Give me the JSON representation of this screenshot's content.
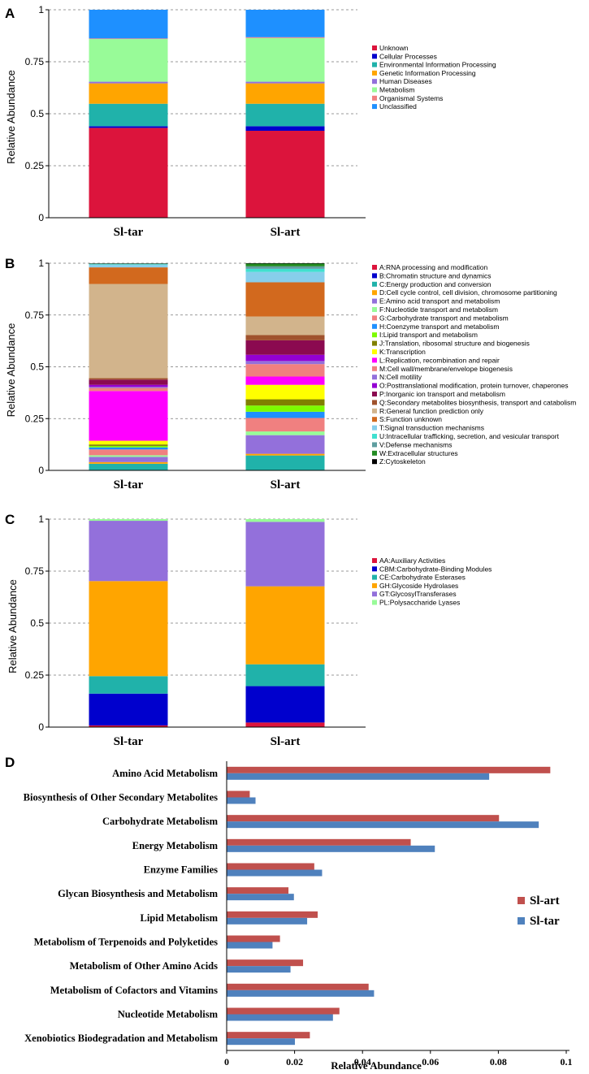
{
  "chart_data": [
    {
      "panel": "A",
      "type": "bar",
      "stacked": true,
      "ylabel": "Relative Abundance",
      "xlabel": "",
      "ylim": [
        0,
        1
      ],
      "yticks": [
        "0",
        "0.25",
        "0.5",
        "0.75",
        "1"
      ],
      "grid": true,
      "legend_position": "right",
      "categories": [
        "Sl-tar",
        "Sl-art"
      ],
      "series": [
        {
          "name": "Unknown",
          "color": "#dc143c",
          "values": [
            0.432,
            0.418
          ]
        },
        {
          "name": "Cellular Processes",
          "color": "#0000cd",
          "values": [
            0.008,
            0.022
          ]
        },
        {
          "name": "Environmental Information Processing",
          "color": "#20b2aa",
          "values": [
            0.108,
            0.108
          ]
        },
        {
          "name": "Genetic Information Processing",
          "color": "#ffa500",
          "values": [
            0.098,
            0.098
          ]
        },
        {
          "name": "Human Diseases",
          "color": "#9370db",
          "values": [
            0.008,
            0.008
          ]
        },
        {
          "name": "Metabolism",
          "color": "#98fb98",
          "values": [
            0.205,
            0.21
          ]
        },
        {
          "name": "Organismal Systems",
          "color": "#f08080",
          "values": [
            0.003,
            0.004
          ]
        },
        {
          "name": "Unclassified",
          "color": "#1e90ff",
          "values": [
            0.138,
            0.132
          ]
        }
      ]
    },
    {
      "panel": "B",
      "type": "bar",
      "stacked": true,
      "ylabel": "Relative Abundance",
      "xlabel": "",
      "ylim": [
        0,
        1
      ],
      "yticks": [
        "0",
        "0.25",
        "0.5",
        "0.75",
        "1"
      ],
      "grid": true,
      "legend_position": "right",
      "categories": [
        "Sl-tar",
        "Sl-art"
      ],
      "series": [
        {
          "name": "A:RNA processing and modification",
          "color": "#dc143c",
          "values": [
            0.001,
            0.001
          ]
        },
        {
          "name": "B:Chromatin structure and dynamics",
          "color": "#0000cd",
          "values": [
            0.001,
            0.001
          ]
        },
        {
          "name": "C:Energy production and conversion",
          "color": "#20b2aa",
          "values": [
            0.03,
            0.07
          ]
        },
        {
          "name": "D:Cell cycle control, cell division, chromosome partitioning",
          "color": "#ffa500",
          "values": [
            0.008,
            0.008
          ]
        },
        {
          "name": "E:Amino acid transport and metabolism",
          "color": "#9370db",
          "values": [
            0.025,
            0.09
          ]
        },
        {
          "name": "F:Nucleotide transport and metabolism",
          "color": "#98fb98",
          "values": [
            0.008,
            0.018
          ]
        },
        {
          "name": "G:Carbohydrate transport and metabolism",
          "color": "#f08080",
          "values": [
            0.028,
            0.065
          ]
        },
        {
          "name": "H:Coenzyme transport and metabolism",
          "color": "#1e90ff",
          "values": [
            0.01,
            0.03
          ]
        },
        {
          "name": "I:Lipid transport and metabolism",
          "color": "#7cfc00",
          "values": [
            0.007,
            0.03
          ]
        },
        {
          "name": "J:Translation, ribosomal structure and biogenesis",
          "color": "#808000",
          "values": [
            0.007,
            0.03
          ]
        },
        {
          "name": "K:Transcription",
          "color": "#ffff00",
          "values": [
            0.018,
            0.07
          ]
        },
        {
          "name": "L:Replication, recombination and repair",
          "color": "#ff00ff",
          "values": [
            0.24,
            0.04
          ]
        },
        {
          "name": "M:Cell wall/membrane/envelope biogenesis",
          "color": "#f08080",
          "values": [
            0.015,
            0.06
          ]
        },
        {
          "name": "N:Cell motility",
          "color": "#9370db",
          "values": [
            0.005,
            0.015
          ]
        },
        {
          "name": "O:Posttranslational modification, protein turnover, chaperones",
          "color": "#9400d3",
          "values": [
            0.01,
            0.03
          ]
        },
        {
          "name": "P:Inorganic ion transport and metabolism",
          "color": "#8b0a50",
          "values": [
            0.025,
            0.07
          ]
        },
        {
          "name": "Q:Secondary metabolites biosynthesis, transport and catabolism",
          "color": "#a0522d",
          "values": [
            0.007,
            0.025
          ]
        },
        {
          "name": "R:General function prediction only",
          "color": "#d2b48c",
          "values": [
            0.455,
            0.09
          ]
        },
        {
          "name": "S:Function unknown",
          "color": "#d2691e",
          "values": [
            0.08,
            0.165
          ]
        },
        {
          "name": "T:Signal transduction mechanisms",
          "color": "#87ceeb",
          "values": [
            0.012,
            0.05
          ]
        },
        {
          "name": "U:Intracellular trafficking, secretion, and vesicular transport",
          "color": "#40e0d0",
          "values": [
            0.003,
            0.015
          ]
        },
        {
          "name": "V:Defense mechanisms",
          "color": "#5f9ea0",
          "values": [
            0.003,
            0.012
          ]
        },
        {
          "name": "W:Extracellular structures",
          "color": "#228b22",
          "values": [
            0.001,
            0.013
          ]
        },
        {
          "name": "Z:Cytoskeleton",
          "color": "#000000",
          "values": [
            0.001,
            0.002
          ]
        }
      ]
    },
    {
      "panel": "C",
      "type": "bar",
      "stacked": true,
      "ylabel": "Relative Abundance",
      "xlabel": "",
      "ylim": [
        0,
        1
      ],
      "yticks": [
        "0",
        "0.25",
        "0.5",
        "0.75",
        "1"
      ],
      "grid": true,
      "legend_position": "right",
      "categories": [
        "Sl-tar",
        "Sl-art"
      ],
      "series": [
        {
          "name": "AA:Auxiliary Activities",
          "color": "#dc143c",
          "values": [
            0.008,
            0.022
          ]
        },
        {
          "name": "CBM:Carbohydrate-Binding Modules",
          "color": "#0000cd",
          "values": [
            0.153,
            0.175
          ]
        },
        {
          "name": "CE:Carbohydrate Esterases",
          "color": "#20b2aa",
          "values": [
            0.084,
            0.105
          ]
        },
        {
          "name": "GH:Glycoside Hydrolases",
          "color": "#ffa500",
          "values": [
            0.457,
            0.375
          ]
        },
        {
          "name": "GT:GlycosylTransferases",
          "color": "#9370db",
          "values": [
            0.29,
            0.31
          ]
        },
        {
          "name": "PL:Polysaccharide Lyases",
          "color": "#98fb98",
          "values": [
            0.008,
            0.013
          ]
        }
      ]
    },
    {
      "panel": "D",
      "type": "bar",
      "orientation": "horizontal",
      "xlabel": "Relative Abundance",
      "ylabel": "",
      "xlim": [
        0,
        0.1
      ],
      "xticks": [
        "0",
        "0.02",
        "0.04",
        "0.06",
        "0.08",
        "0.1"
      ],
      "grid": false,
      "legend_position": "right",
      "categories": [
        "Amino Acid Metabolism",
        "Biosynthesis of Other Secondary Metabolites",
        "Carbohydrate Metabolism",
        "Energy Metabolism",
        "Enzyme Families",
        "Glycan Biosynthesis and Metabolism",
        "Lipid Metabolism",
        "Metabolism of Terpenoids and Polyketides",
        "Metabolism of Other Amino Acids",
        "Metabolism of Cofactors and Vitamins",
        "Nucleotide Metabolism",
        "Xenobiotics Biodegradation and Metabolism"
      ],
      "series": [
        {
          "name": "Sl-art",
          "color": "#c0504d",
          "values": [
            0.0953,
            0.0068,
            0.0802,
            0.0542,
            0.0258,
            0.0182,
            0.0268,
            0.0157,
            0.0225,
            0.0418,
            0.0332,
            0.0245
          ]
        },
        {
          "name": "Sl-tar",
          "color": "#4f81bd",
          "values": [
            0.0773,
            0.0085,
            0.0919,
            0.0613,
            0.0281,
            0.0198,
            0.0237,
            0.0135,
            0.0188,
            0.0434,
            0.0313,
            0.0201
          ]
        }
      ]
    }
  ]
}
